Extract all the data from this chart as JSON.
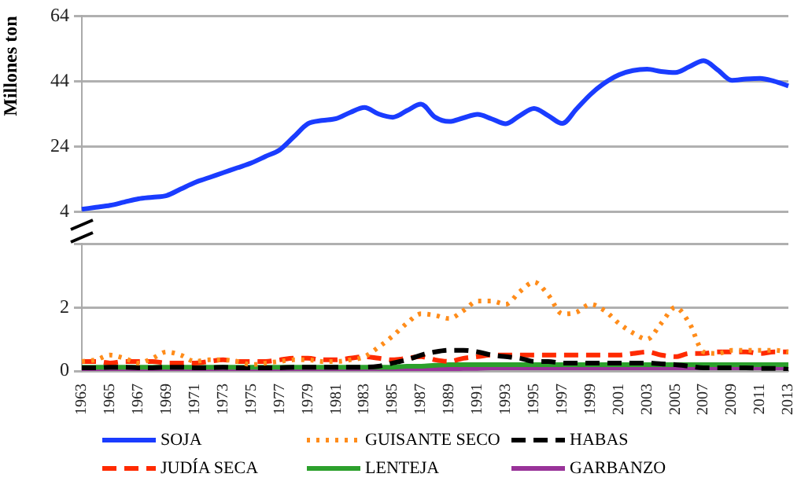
{
  "chart_data": [
    {
      "type": "line",
      "ylabel": "Millones ton",
      "categories": [
        "1963",
        null,
        "1965",
        null,
        "1967",
        null,
        "1969",
        null,
        "1971",
        null,
        "1973",
        null,
        "1975",
        null,
        "1977",
        null,
        "1979",
        null,
        "1981",
        null,
        "1983",
        null,
        "1985",
        null,
        "1987",
        null,
        "1989",
        null,
        "1991",
        null,
        "1993",
        null,
        "1995",
        null,
        "1997",
        null,
        "1999",
        null,
        "2001",
        null,
        "2003",
        null,
        "2005",
        null,
        "2007",
        null,
        "2009",
        null,
        "2011",
        null,
        "2013"
      ],
      "ylim": [
        4,
        64
      ],
      "yticks": [
        4,
        24,
        44,
        64
      ],
      "grid": "y",
      "tick_labels": "y",
      "legend": "bottom",
      "series": [
        {
          "name": "SOJA",
          "color": "#1a3cff",
          "line_style": "solid",
          "values": [
            4.8,
            5.4,
            6,
            7,
            8,
            8.5,
            9,
            11,
            13,
            14.5,
            16,
            17.5,
            19,
            21,
            23,
            27,
            31,
            32,
            32.6,
            34.5,
            36,
            34,
            33,
            35,
            37,
            33,
            31.7,
            32.8,
            33.9,
            32.5,
            31,
            33.5,
            35.7,
            33.5,
            31.1,
            35.5,
            40,
            43.5,
            46,
            47.3,
            47.7,
            47,
            46.7,
            48.5,
            50.3,
            47.5,
            44.3,
            44.7,
            44.9,
            44,
            42.6
          ]
        }
      ]
    },
    {
      "type": "line",
      "categories": [
        "1963",
        null,
        "1965",
        null,
        "1967",
        null,
        "1969",
        null,
        "1971",
        null,
        "1973",
        null,
        "1975",
        null,
        "1977",
        null,
        "1979",
        null,
        "1981",
        null,
        "1983",
        null,
        "1985",
        null,
        "1987",
        null,
        "1989",
        null,
        "1991",
        null,
        "1993",
        null,
        "1995",
        null,
        "1997",
        null,
        "1999",
        null,
        "2001",
        null,
        "2003",
        null,
        "2005",
        null,
        "2007",
        null,
        "2009",
        null,
        "2011",
        null,
        "2013"
      ],
      "ylim": [
        0,
        4
      ],
      "yticks": [
        0,
        2,
        {
          "value": 4,
          "label": null
        }
      ],
      "grid": "y",
      "legend": "bottom",
      "series": [
        {
          "name": "GUISANTE SECO",
          "color": "#ff8c1a",
          "line_style": "dotted",
          "values": [
            0.3,
            0.35,
            0.5,
            0.4,
            0.25,
            0.4,
            0.6,
            0.5,
            0.3,
            0.35,
            0.35,
            0.3,
            0.2,
            0.25,
            0.3,
            0.35,
            0.35,
            0.3,
            0.3,
            0.35,
            0.45,
            0.75,
            1.1,
            1.5,
            1.8,
            1.75,
            1.65,
            1.9,
            2.2,
            2.2,
            2.1,
            2.5,
            2.8,
            2.4,
            1.8,
            1.85,
            2.1,
            1.9,
            1.5,
            1.2,
            1.0,
            1.5,
            2.0,
            1.5,
            0.6,
            0.55,
            0.65,
            0.65,
            0.65,
            0.65,
            0.6
          ]
        },
        {
          "name": "HABAS",
          "color": "#000000",
          "line_style": "dashed",
          "values": [
            0.1,
            0.1,
            0.12,
            0.12,
            0.1,
            0.1,
            0.12,
            0.12,
            0.1,
            0.1,
            0.12,
            0.1,
            0.1,
            0.1,
            0.1,
            0.12,
            0.12,
            0.12,
            0.12,
            0.12,
            0.12,
            0.15,
            0.25,
            0.35,
            0.5,
            0.6,
            0.65,
            0.65,
            0.6,
            0.5,
            0.45,
            0.4,
            0.3,
            0.3,
            0.25,
            0.25,
            0.25,
            0.25,
            0.25,
            0.25,
            0.25,
            0.22,
            0.2,
            0.15,
            0.1,
            0.1,
            0.1,
            0.1,
            0.08,
            0.08,
            0.05
          ]
        },
        {
          "name": "JUDÍA SECA",
          "color": "#ff2a00",
          "line_style": "dashed",
          "values": [
            0.3,
            0.3,
            0.25,
            0.3,
            0.3,
            0.3,
            0.25,
            0.25,
            0.25,
            0.3,
            0.35,
            0.3,
            0.3,
            0.3,
            0.35,
            0.4,
            0.4,
            0.35,
            0.35,
            0.4,
            0.45,
            0.4,
            0.35,
            0.4,
            0.45,
            0.35,
            0.3,
            0.4,
            0.45,
            0.5,
            0.5,
            0.5,
            0.5,
            0.5,
            0.5,
            0.5,
            0.5,
            0.5,
            0.5,
            0.55,
            0.6,
            0.5,
            0.45,
            0.55,
            0.55,
            0.6,
            0.6,
            0.6,
            0.55,
            0.6,
            0.6
          ]
        },
        {
          "name": "LENTEJA",
          "color": "#2ca02c",
          "line_style": "solid",
          "values": [
            0.12,
            0.12,
            0.12,
            0.12,
            0.12,
            0.12,
            0.12,
            0.12,
            0.12,
            0.12,
            0.12,
            0.12,
            0.12,
            0.12,
            0.12,
            0.12,
            0.12,
            0.12,
            0.12,
            0.12,
            0.12,
            0.12,
            0.12,
            0.15,
            0.15,
            0.18,
            0.2,
            0.2,
            0.2,
            0.2,
            0.2,
            0.2,
            0.2,
            0.2,
            0.2,
            0.2,
            0.2,
            0.2,
            0.2,
            0.2,
            0.2,
            0.2,
            0.2,
            0.2,
            0.2,
            0.2,
            0.2,
            0.2,
            0.2,
            0.2,
            0.2
          ]
        },
        {
          "name": "GARBANZO",
          "color": "#993399",
          "line_style": "solid",
          "values": [
            0.05,
            0.05,
            0.05,
            0.05,
            0.05,
            0.05,
            0.05,
            0.05,
            0.05,
            0.05,
            0.05,
            0.05,
            0.05,
            0.05,
            0.05,
            0.05,
            0.05,
            0.05,
            0.05,
            0.05,
            0.05,
            0.05,
            0.05,
            0.05,
            0.05,
            0.05,
            0.05,
            0.08,
            0.08,
            0.1,
            0.1,
            0.1,
            0.1,
            0.1,
            0.1,
            0.1,
            0.1,
            0.1,
            0.1,
            0.1,
            0.1,
            0.1,
            0.1,
            0.1,
            0.1,
            0.1,
            0.1,
            0.1,
            0.1,
            0.1,
            0.1
          ]
        }
      ]
    }
  ]
}
